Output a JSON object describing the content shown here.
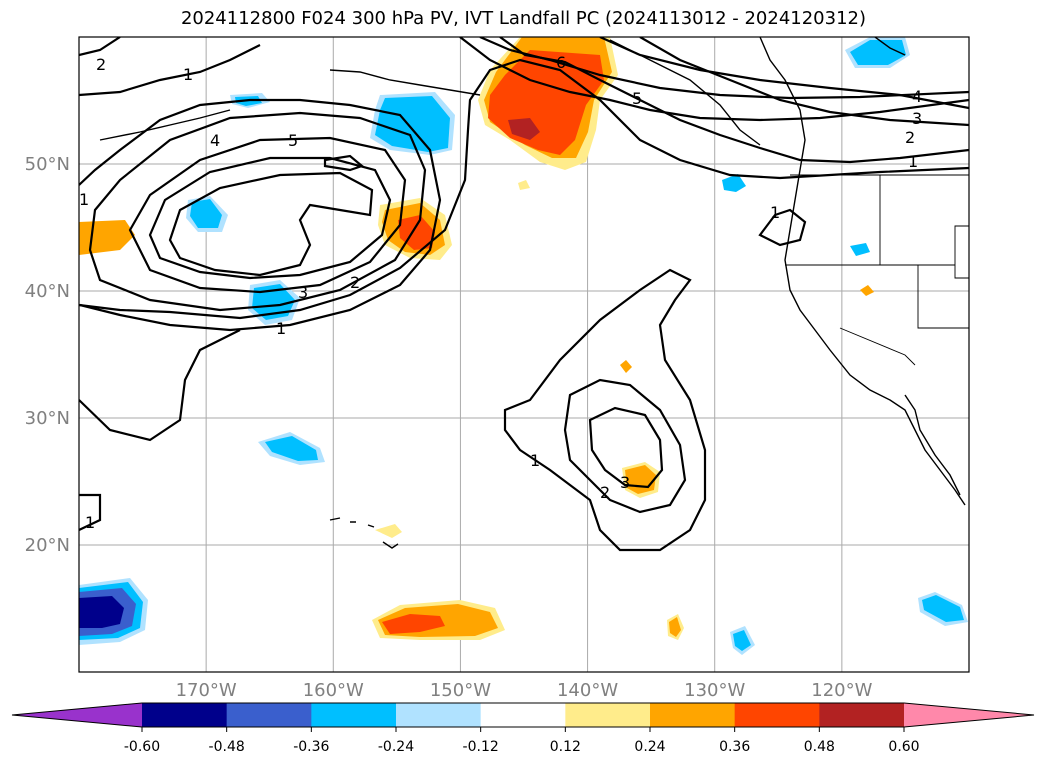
{
  "title": "2024112800 F024 300 hPa PV, IVT Landfall PC (2024113012 - 2024120312)",
  "map": {
    "region": "North Pacific and western North America",
    "lon_range": [
      -180,
      -110
    ],
    "lat_range": [
      10,
      60
    ],
    "gridlines": true,
    "lat_ticks": [
      "20°N",
      "30°N",
      "40°N",
      "50°N"
    ],
    "lon_ticks": [
      "170°W",
      "160°W",
      "150°W",
      "140°W",
      "130°W",
      "120°W"
    ],
    "fill_variable": "IVT Landfall PC",
    "contour_variable": "300 hPa PV",
    "contour_labels": [
      "1",
      "2",
      "3",
      "4",
      "5",
      "6"
    ]
  },
  "colorbar": {
    "levels": [
      "-0.60",
      "-0.48",
      "-0.36",
      "-0.24",
      "-0.12",
      "0.12",
      "0.24",
      "0.36",
      "0.48",
      "0.60"
    ],
    "colors": [
      "#9932cc",
      "#00008b",
      "#3a5fcd",
      "#00bfff",
      "#b0e2ff",
      "#ffffff",
      "#ffec8b",
      "#ffa500",
      "#ff4500",
      "#b22222",
      "#ff88aa"
    ],
    "extend": "both"
  }
}
